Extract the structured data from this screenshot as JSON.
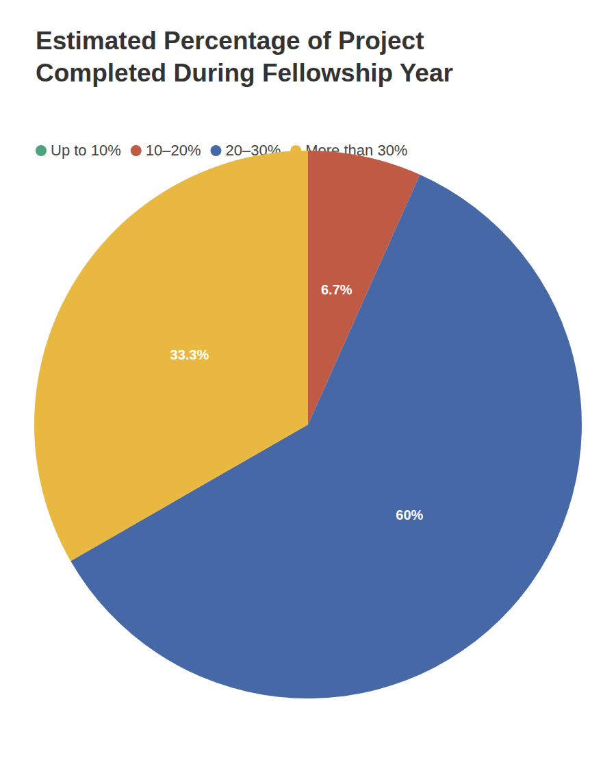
{
  "chart_data": {
    "type": "pie",
    "title": "Estimated Percentage of Project Completed During Fellowship Year",
    "categories": [
      "Up to 10%",
      "10–20%",
      "20–30%",
      "More than 30%"
    ],
    "values": [
      0,
      6.7,
      60,
      33.3
    ],
    "value_labels": [
      null,
      "6.7%",
      "60%",
      "33.3%"
    ],
    "colors": [
      "#4fa37c",
      "#bf5a45",
      "#4668a7",
      "#e8b840"
    ],
    "legend": "top-left",
    "data_labels": true
  }
}
